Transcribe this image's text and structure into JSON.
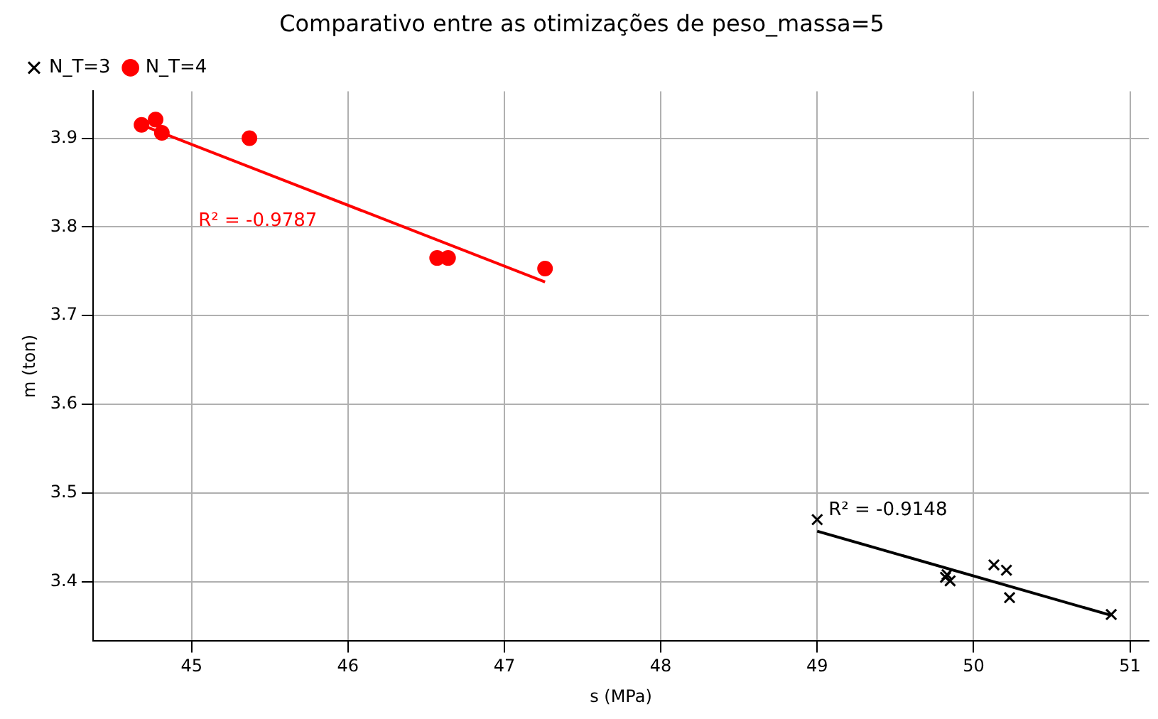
{
  "chart_data": {
    "type": "scatter",
    "title": "Comparativo entre as otimizações de peso_massa=5",
    "xlabel": "s (MPa)",
    "ylabel": "m (ton)",
    "series": [
      {
        "name": "N_T=3",
        "color": "#000000",
        "marker": "cross",
        "x": [
          49.0,
          49.83,
          49.85,
          49.82,
          50.13,
          50.21,
          50.23,
          50.88
        ],
        "values": [
          3.47,
          3.408,
          3.401,
          3.405,
          3.419,
          3.413,
          3.382,
          3.363
        ]
      },
      {
        "name": "N_T=4",
        "color": "#ff0000",
        "marker": "circle",
        "x": [
          44.68,
          44.77,
          44.81,
          45.37,
          46.57,
          46.64,
          47.26
        ],
        "values": [
          3.915,
          3.921,
          3.906,
          3.9,
          3.765,
          3.765,
          3.753
        ]
      },
      {
        "type": "line",
        "color": "#000000",
        "marker": "none",
        "x": [
          49.0,
          50.88
        ],
        "values": [
          3.457,
          3.362
        ]
      },
      {
        "type": "line",
        "color": "#ff0000",
        "marker": "none",
        "x": [
          44.68,
          47.26
        ],
        "values": [
          3.915,
          3.738
        ]
      }
    ],
    "annotations": [
      "R² = -0.9148",
      "R² = -0.9787"
    ],
    "xlim": [
      44.37,
      51.12
    ],
    "xticks": [
      45,
      46,
      47,
      48,
      49,
      50,
      51
    ],
    "ylim": [
      3.333,
      3.953
    ],
    "yticks": [
      3.4,
      3.5,
      3.6,
      3.7,
      3.8,
      3.9
    ],
    "grid": true,
    "legend": "top left"
  }
}
